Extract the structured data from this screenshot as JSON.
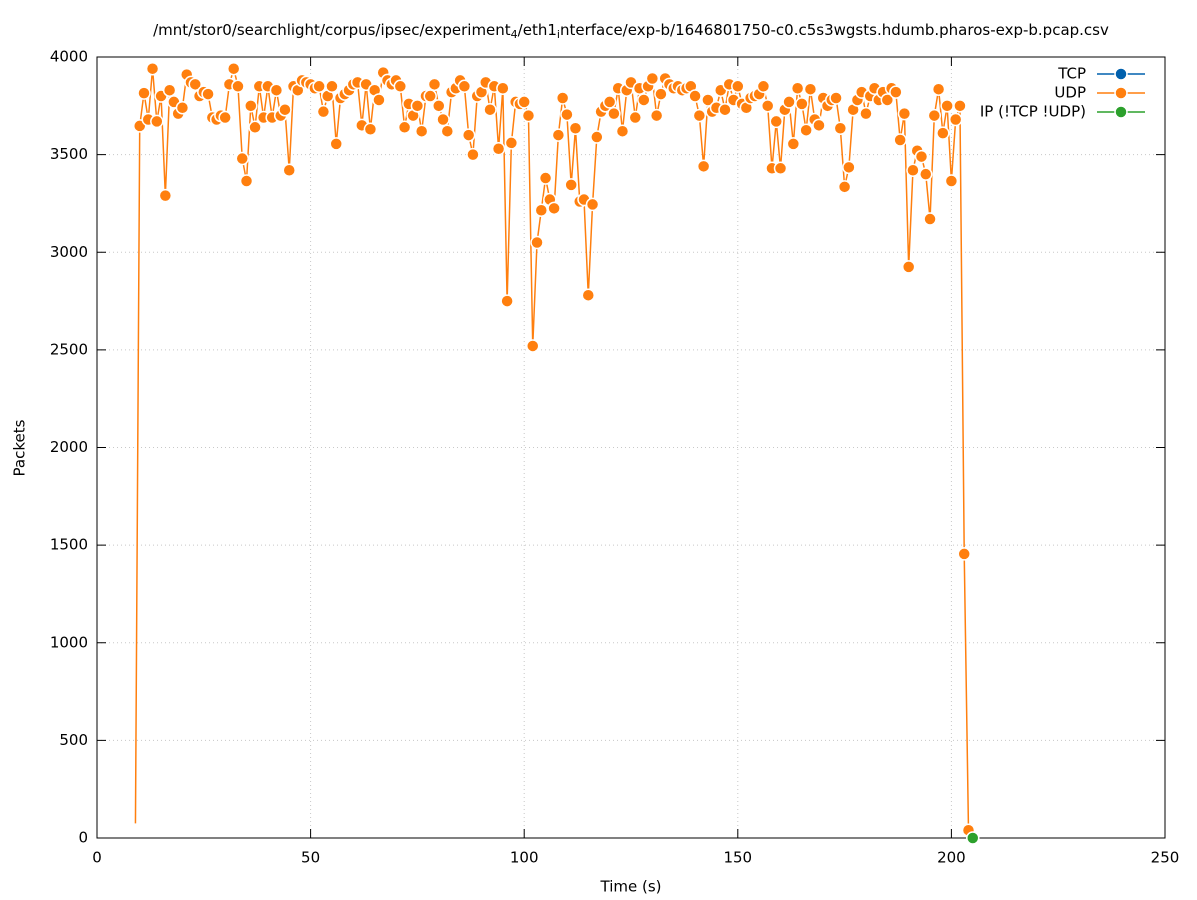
{
  "chart_data": {
    "type": "line",
    "title": [
      "/mnt/stor0/searchlight/corpus/ipsec/experiment",
      "4",
      "/eth1",
      "i",
      "nterface/exp-b/1646801750-c0.c5s3wgsts.hdumb.pharos-exp-b.pcap.csv"
    ],
    "x_label": "Time (s)",
    "y_label": "Packets",
    "xlim": [
      0,
      250
    ],
    "xticks": [
      0,
      50,
      100,
      150,
      200,
      250
    ],
    "ylim": [
      0,
      4000
    ],
    "yticks": [
      0,
      500,
      1000,
      1500,
      2000,
      2500,
      3000,
      3500,
      4000
    ],
    "grid": true,
    "legend": "top-right",
    "series": [
      {
        "name": "TCP",
        "color": "#0060ad",
        "x": [],
        "values": []
      },
      {
        "name": "UDP",
        "color": "#ff7f0e",
        "x": [
          9,
          10,
          11,
          12,
          13,
          14,
          15,
          16,
          17,
          18,
          19,
          20,
          21,
          22,
          23,
          24,
          25,
          26,
          27,
          28,
          29,
          30,
          31,
          32,
          33,
          34,
          35,
          36,
          37,
          38,
          39,
          40,
          41,
          42,
          43,
          44,
          45,
          46,
          47,
          48,
          49,
          50,
          51,
          52,
          53,
          54,
          55,
          56,
          57,
          58,
          59,
          60,
          61,
          62,
          63,
          64,
          65,
          66,
          67,
          68,
          69,
          70,
          71,
          72,
          73,
          74,
          75,
          76,
          77,
          78,
          79,
          80,
          81,
          82,
          83,
          84,
          85,
          86,
          87,
          88,
          89,
          90,
          91,
          92,
          93,
          94,
          95,
          96,
          97,
          98,
          99,
          100,
          101,
          102,
          103,
          104,
          105,
          106,
          107,
          108,
          109,
          110,
          111,
          112,
          113,
          114,
          115,
          116,
          117,
          118,
          119,
          120,
          121,
          122,
          123,
          124,
          125,
          126,
          127,
          128,
          129,
          130,
          131,
          132,
          133,
          134,
          135,
          136,
          137,
          138,
          139,
          140,
          141,
          142,
          143,
          144,
          145,
          146,
          147,
          148,
          149,
          150,
          151,
          152,
          153,
          154,
          155,
          156,
          157,
          158,
          159,
          160,
          161,
          162,
          163,
          164,
          165,
          166,
          167,
          168,
          169,
          170,
          171,
          172,
          173,
          174,
          175,
          176,
          177,
          178,
          179,
          180,
          181,
          182,
          183,
          184,
          185,
          186,
          187,
          188,
          189,
          190,
          191,
          192,
          193,
          194,
          195,
          196,
          197,
          198,
          199,
          200,
          201,
          202,
          203,
          204
        ],
        "values": [
          75,
          3647,
          3815,
          3680,
          3940,
          3670,
          3800,
          3290,
          3830,
          3770,
          3710,
          3740,
          3910,
          3870,
          3860,
          3800,
          3820,
          3810,
          3690,
          3680,
          3700,
          3690,
          3860,
          3940,
          3850,
          3480,
          3365,
          3750,
          3640,
          3850,
          3690,
          3850,
          3690,
          3830,
          3700,
          3730,
          3420,
          3850,
          3830,
          3880,
          3870,
          3860,
          3840,
          3850,
          3720,
          3800,
          3850,
          3555,
          3790,
          3810,
          3830,
          3860,
          3870,
          3650,
          3860,
          3630,
          3830,
          3780,
          3920,
          3880,
          3860,
          3880,
          3850,
          3640,
          3760,
          3700,
          3750,
          3620,
          3800,
          3800,
          3860,
          3750,
          3680,
          3620,
          3820,
          3840,
          3880,
          3850,
          3600,
          3500,
          3800,
          3820,
          3870,
          3730,
          3850,
          3530,
          3840,
          2750,
          3560,
          3770,
          3760,
          3770,
          3700,
          2520,
          3050,
          3215,
          3380,
          3270,
          3225,
          3600,
          3790,
          3705,
          3345,
          3635,
          3260,
          3270,
          2780,
          3245,
          3590,
          3720,
          3750,
          3770,
          3710,
          3840,
          3620,
          3830,
          3870,
          3690,
          3840,
          3780,
          3850,
          3890,
          3700,
          3810,
          3890,
          3860,
          3840,
          3850,
          3830,
          3840,
          3850,
          3800,
          3700,
          3440,
          3780,
          3720,
          3740,
          3830,
          3730,
          3860,
          3780,
          3850,
          3760,
          3740,
          3790,
          3800,
          3810,
          3850,
          3750,
          3430,
          3670,
          3430,
          3730,
          3770,
          3555,
          3840,
          3760,
          3625,
          3835,
          3680,
          3650,
          3790,
          3750,
          3780,
          3790,
          3635,
          3335,
          3435,
          3730,
          3780,
          3820,
          3710,
          3800,
          3840,
          3780,
          3820,
          3780,
          3840,
          3820,
          3575,
          3710,
          2925,
          3420,
          3520,
          3490,
          3400,
          3170,
          3700,
          3835,
          3610,
          3750,
          3365,
          3680,
          3750,
          1455,
          40
        ]
      },
      {
        "name": "IP (!TCP  !UDP)",
        "color": "#2ca02c",
        "x": [
          205
        ],
        "values": [
          0
        ]
      }
    ]
  }
}
